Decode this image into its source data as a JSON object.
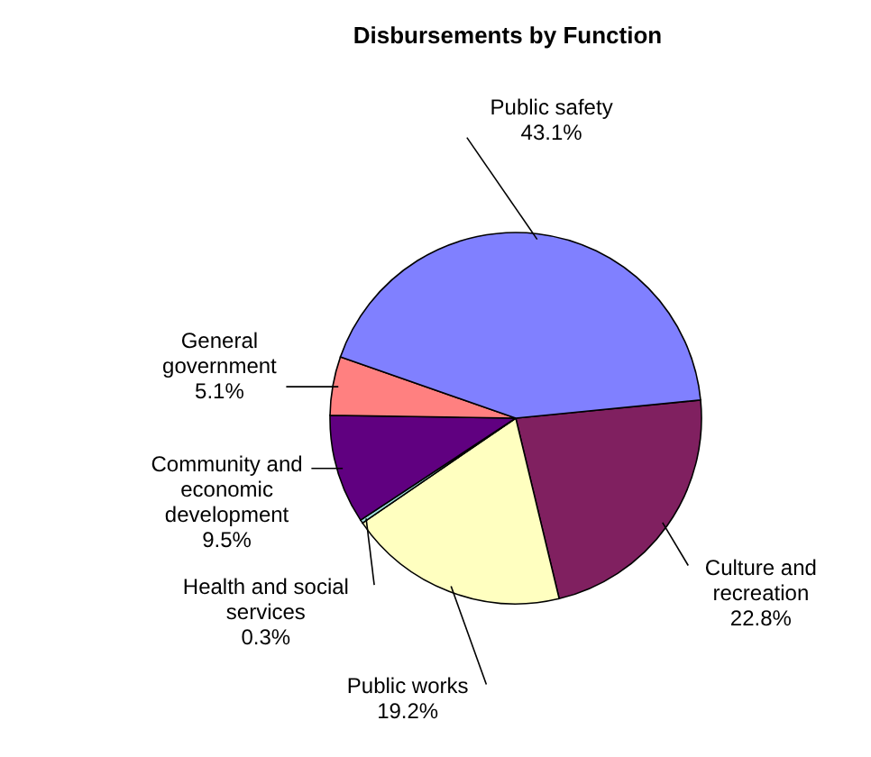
{
  "chart_data": {
    "type": "pie",
    "title": "Disbursements by Function",
    "categories": [
      "Culture and recreation",
      "Public works",
      "Health and social services",
      "Community and economic development",
      "General government",
      "Public safety"
    ],
    "values": [
      22.8,
      19.2,
      0.3,
      9.5,
      5.1,
      43.1
    ],
    "value_labels": [
      "22.8%",
      "19.2%",
      "0.3%",
      "9.5%",
      "5.1%",
      "43.1%"
    ],
    "colors": [
      "#802060",
      "#ffffc0",
      "#a0e0e0",
      "#600080",
      "#ff8080",
      "#8080ff"
    ]
  }
}
